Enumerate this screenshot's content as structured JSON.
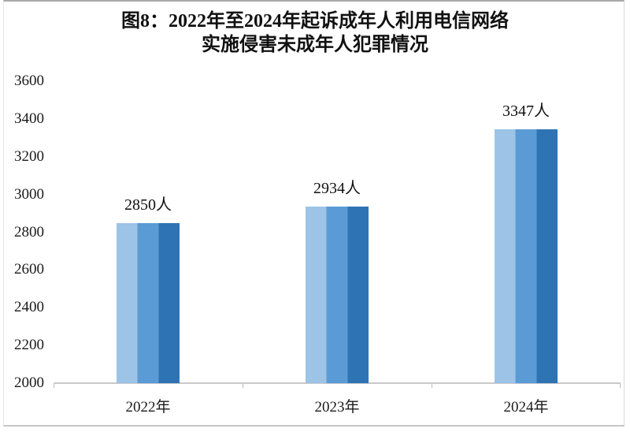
{
  "figure": {
    "title_line1": "图8：2022年至2024年起诉成年人利用电信网络",
    "title_line2": "实施侵害未成年人犯罪情况"
  },
  "chart_data": {
    "type": "bar",
    "title": "图8：2022年至2024年起诉成年人利用电信网络实施侵害未成年人犯罪情况",
    "categories": [
      "2022年",
      "2023年",
      "2024年"
    ],
    "values": [
      2850,
      2934,
      3347
    ],
    "data_labels": [
      "2850人",
      "2934人",
      "3347人"
    ],
    "unit_suffix": "人",
    "xlabel": "",
    "ylabel": "",
    "ylim": [
      2000,
      3600
    ],
    "ytick_step": 200,
    "yticks": [
      2000,
      2200,
      2400,
      2600,
      2800,
      3000,
      3200,
      3400,
      3600
    ],
    "grid": false,
    "legend_shown": false,
    "colors": {
      "bar_stripe_light": "#9dc3e6",
      "bar_stripe_medium": "#5b9bd5",
      "bar_stripe_dark": "#2e74b5",
      "axis_line": "#c9c9c9",
      "tick_mark": "#b9b9b9",
      "text": "#111111"
    }
  }
}
